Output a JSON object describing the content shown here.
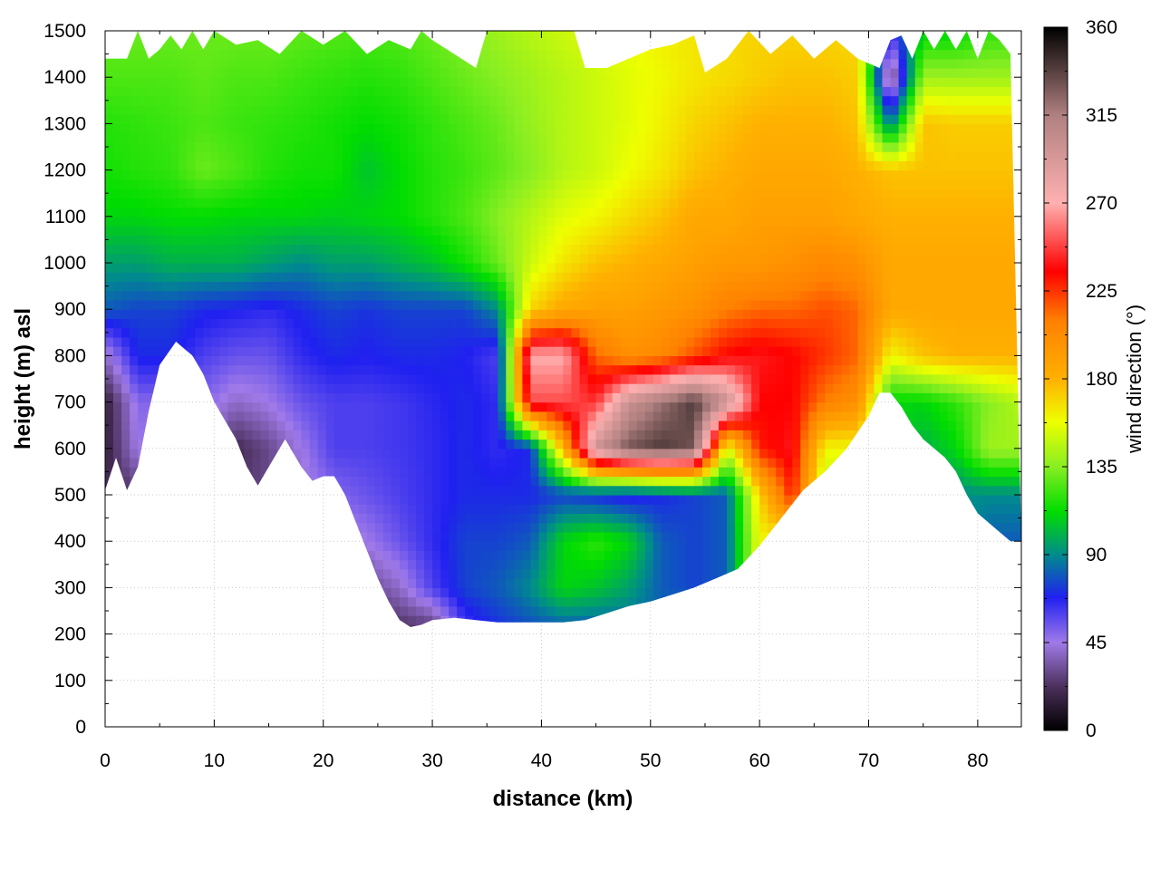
{
  "chart_data": {
    "type": "heatmap",
    "xlabel": "distance (km)",
    "ylabel": "height (m) asl",
    "colorbar_label": "wind direction (°)",
    "xlim": [
      0,
      84
    ],
    "ylim": [
      0,
      1500
    ],
    "x_ticks": [
      0,
      10,
      20,
      30,
      40,
      50,
      60,
      70,
      80
    ],
    "y_ticks": [
      0,
      100,
      200,
      300,
      400,
      500,
      600,
      700,
      800,
      900,
      1000,
      1100,
      1200,
      1300,
      1400,
      1500
    ],
    "color_range": [
      0,
      360
    ],
    "colorbar_ticks": [
      0,
      45,
      90,
      135,
      180,
      225,
      270,
      315,
      360
    ],
    "colormap": [
      {
        "v": 0,
        "c": "#000000"
      },
      {
        "v": 22,
        "c": "#4a2f5a"
      },
      {
        "v": 45,
        "c": "#a07ae8"
      },
      {
        "v": 68,
        "c": "#2020f0"
      },
      {
        "v": 90,
        "c": "#008c8c"
      },
      {
        "v": 112,
        "c": "#00dd00"
      },
      {
        "v": 135,
        "c": "#88ee22"
      },
      {
        "v": 158,
        "c": "#eeff00"
      },
      {
        "v": 180,
        "c": "#ffb000"
      },
      {
        "v": 210,
        "c": "#ff8000"
      },
      {
        "v": 235,
        "c": "#ff0000"
      },
      {
        "v": 270,
        "c": "#ffb0b0"
      },
      {
        "v": 315,
        "c": "#b08080"
      },
      {
        "v": 360,
        "c": "#000000"
      }
    ],
    "grid": true,
    "terrain_surface": {
      "x": [
        0,
        1,
        2,
        3,
        4,
        5,
        6.5,
        8,
        9,
        10,
        11,
        12,
        13,
        14,
        15,
        16.5,
        18,
        19,
        20,
        21,
        22,
        23,
        24,
        25,
        26,
        27,
        28,
        29,
        30,
        32,
        34,
        36,
        38,
        40,
        42,
        44,
        46,
        48,
        50,
        52,
        54,
        56,
        58,
        60,
        62,
        64,
        66,
        68,
        70,
        71,
        72,
        73,
        74,
        75,
        76,
        77,
        78,
        79,
        80,
        81,
        82,
        83,
        84
      ],
      "height": [
        510,
        580,
        510,
        560,
        680,
        780,
        830,
        800,
        760,
        700,
        660,
        620,
        560,
        520,
        560,
        620,
        560,
        530,
        540,
        540,
        500,
        440,
        380,
        320,
        270,
        230,
        215,
        220,
        230,
        235,
        230,
        225,
        225,
        225,
        225,
        230,
        245,
        260,
        270,
        285,
        300,
        320,
        340,
        390,
        450,
        510,
        550,
        600,
        670,
        720,
        720,
        690,
        650,
        620,
        600,
        580,
        550,
        500,
        460,
        440,
        420,
        400,
        400
      ]
    },
    "field_top": {
      "x": [
        0,
        2,
        3,
        4,
        5,
        6,
        7,
        8,
        9,
        10,
        12,
        14,
        16,
        18,
        20,
        22,
        24,
        26,
        28,
        29,
        30,
        34,
        35,
        37,
        39,
        41,
        43,
        44,
        46,
        48,
        50,
        52,
        54,
        55,
        57,
        59,
        61,
        63,
        65,
        67,
        69,
        71,
        72,
        73,
        74,
        75,
        76,
        77,
        78,
        79,
        80,
        81,
        82,
        83
      ],
      "height": [
        1440,
        1440,
        1500,
        1440,
        1460,
        1490,
        1460,
        1500,
        1460,
        1500,
        1470,
        1480,
        1450,
        1500,
        1470,
        1500,
        1450,
        1480,
        1460,
        1500,
        1480,
        1420,
        1500,
        1500,
        1500,
        1500,
        1500,
        1420,
        1420,
        1440,
        1460,
        1470,
        1490,
        1410,
        1440,
        1500,
        1450,
        1490,
        1440,
        1480,
        1440,
        1420,
        1480,
        1490,
        1440,
        1500,
        1460,
        1500,
        1460,
        1500,
        1440,
        1500,
        1480,
        1450
      ]
    },
    "wind_direction_grid": {
      "x": [
        0,
        3,
        6,
        9,
        12,
        15,
        18,
        21,
        24,
        27,
        30,
        33,
        36,
        39,
        42,
        45,
        48,
        51,
        54,
        57,
        60,
        63,
        66,
        69,
        72,
        75,
        78,
        81,
        84
      ],
      "height": [
        200,
        300,
        400,
        500,
        600,
        700,
        800,
        900,
        1000,
        1100,
        1200,
        1300,
        1400,
        1500
      ],
      "values": [
        [
          20,
          20,
          20,
          20,
          20,
          20,
          20,
          20,
          20,
          20,
          20,
          60,
          70,
          75,
          75,
          75,
          80,
          85,
          95,
          105,
          160,
          160,
          160,
          160,
          160,
          160,
          160,
          160,
          160
        ],
        [
          20,
          20,
          20,
          20,
          20,
          20,
          20,
          30,
          30,
          40,
          60,
          75,
          80,
          90,
          110,
          105,
          95,
          80,
          75,
          80,
          160,
          160,
          160,
          160,
          160,
          160,
          160,
          160,
          160
        ],
        [
          20,
          20,
          20,
          20,
          20,
          20,
          20,
          40,
          45,
          55,
          65,
          75,
          75,
          80,
          110,
          120,
          110,
          80,
          75,
          80,
          160,
          160,
          160,
          160,
          160,
          100,
          100,
          80,
          80
        ],
        [
          20,
          25,
          25,
          25,
          25,
          30,
          40,
          50,
          55,
          60,
          65,
          70,
          70,
          70,
          75,
          70,
          65,
          70,
          75,
          80,
          170,
          230,
          140,
          150,
          100,
          100,
          90,
          90,
          90
        ],
        [
          15,
          45,
          45,
          45,
          20,
          30,
          45,
          60,
          60,
          62,
          65,
          70,
          65,
          70,
          180,
          300,
          330,
          340,
          330,
          150,
          230,
          240,
          160,
          160,
          110,
          100,
          110,
          140,
          140
        ],
        [
          15,
          50,
          50,
          50,
          40,
          45,
          55,
          60,
          60,
          62,
          66,
          70,
          65,
          250,
          250,
          245,
          300,
          320,
          340,
          300,
          235,
          235,
          210,
          200,
          110,
          110,
          120,
          135,
          145
        ],
        [
          40,
          70,
          70,
          60,
          55,
          55,
          65,
          70,
          68,
          70,
          70,
          68,
          60,
          270,
          270,
          215,
          200,
          205,
          220,
          235,
          240,
          235,
          225,
          215,
          160,
          175,
          180,
          180,
          180
        ],
        [
          80,
          75,
          75,
          70,
          68,
          65,
          70,
          75,
          72,
          75,
          75,
          75,
          90,
          170,
          185,
          190,
          190,
          195,
          200,
          210,
          215,
          215,
          220,
          215,
          185,
          185,
          185,
          185,
          185
        ],
        [
          95,
          95,
          100,
          100,
          100,
          95,
          90,
          95,
          95,
          100,
          105,
          115,
          130,
          150,
          165,
          175,
          180,
          185,
          190,
          195,
          195,
          200,
          205,
          200,
          185,
          185,
          185,
          185,
          185
        ],
        [
          110,
          110,
          112,
          112,
          110,
          110,
          110,
          108,
          110,
          112,
          118,
          125,
          135,
          145,
          155,
          160,
          168,
          175,
          185,
          185,
          190,
          190,
          190,
          185,
          180,
          180,
          180,
          180,
          180
        ],
        [
          115,
          118,
          120,
          130,
          125,
          118,
          115,
          115,
          105,
          112,
          118,
          122,
          128,
          135,
          145,
          150,
          158,
          165,
          175,
          180,
          185,
          185,
          185,
          180,
          175,
          175,
          175,
          175,
          175
        ],
        [
          118,
          120,
          122,
          125,
          122,
          120,
          118,
          115,
          112,
          115,
          120,
          125,
          130,
          138,
          145,
          150,
          155,
          162,
          170,
          175,
          180,
          180,
          180,
          175,
          85,
          175,
          172,
          172,
          172
        ],
        [
          125,
          125,
          125,
          128,
          125,
          125,
          122,
          120,
          118,
          120,
          125,
          130,
          135,
          140,
          145,
          150,
          155,
          160,
          165,
          168,
          172,
          175,
          175,
          172,
          20,
          140,
          140,
          140,
          140
        ],
        [
          130,
          130,
          130,
          130,
          130,
          130,
          128,
          126,
          125,
          126,
          130,
          135,
          140,
          145,
          150,
          155,
          158,
          162,
          165,
          168,
          170,
          170,
          170,
          168,
          60,
          110,
          110,
          120,
          120
        ]
      ]
    }
  }
}
